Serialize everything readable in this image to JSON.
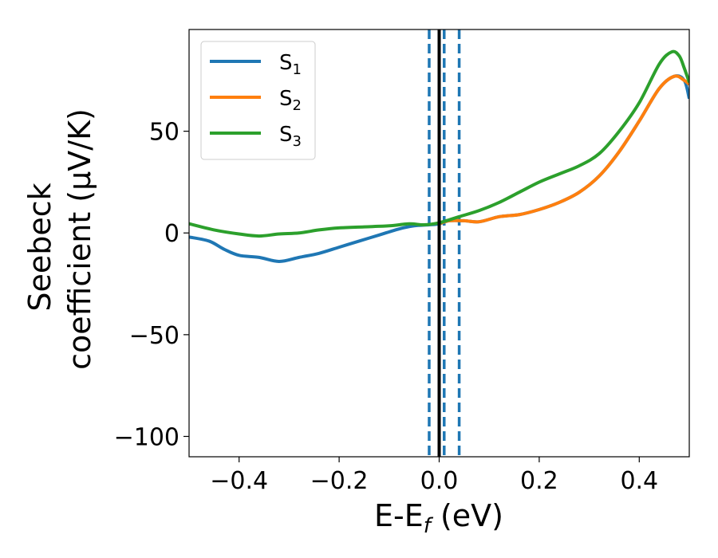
{
  "chart_data": {
    "type": "line",
    "xlabel_main": "E-E",
    "xlabel_sub": "f",
    "xlabel_unit": " (eV)",
    "ylabel_line1": "Seebeck",
    "ylabel_line2": "coefficient  (μV/K)",
    "xlim": [
      -0.5,
      0.5
    ],
    "ylim": [
      -110,
      100
    ],
    "xticks": [
      -0.4,
      -0.2,
      0.0,
      0.2,
      0.4
    ],
    "xtick_labels": [
      "−0.4",
      "−0.2",
      "0.0",
      "0.2",
      "0.4"
    ],
    "yticks": [
      -100,
      -50,
      0,
      50
    ],
    "ytick_labels": [
      "−100",
      "−50",
      "0",
      "50"
    ],
    "grid": false,
    "legend_position": "top-left",
    "series": [
      {
        "name": "S",
        "subscript": "1",
        "color": "#1f77b4",
        "x": [
          -0.5,
          -0.46,
          -0.43,
          -0.4,
          -0.36,
          -0.32,
          -0.28,
          -0.24,
          -0.2,
          -0.16,
          -0.12,
          -0.08,
          -0.05,
          -0.02,
          0.0,
          0.02,
          0.05,
          0.08,
          0.12,
          0.16,
          0.2,
          0.24,
          0.28,
          0.32,
          0.36,
          0.4,
          0.44,
          0.47,
          0.49,
          0.5
        ],
        "y": [
          -2,
          -4,
          -8,
          -11,
          -12,
          -14,
          -12,
          -10,
          -7,
          -4,
          -1,
          2,
          3.5,
          4,
          4.5,
          6,
          6,
          5.5,
          8,
          9,
          11.5,
          15,
          20,
          28,
          40,
          55,
          71,
          77,
          75,
          66
        ]
      },
      {
        "name": "S",
        "subscript": "2",
        "color": "#ff7f0e",
        "x": [
          0.0,
          0.02,
          0.05,
          0.08,
          0.12,
          0.16,
          0.2,
          0.24,
          0.28,
          0.32,
          0.36,
          0.4,
          0.44,
          0.47,
          0.49,
          0.5
        ],
        "y": [
          4.5,
          6,
          6,
          5.5,
          8,
          9,
          11.5,
          15,
          20,
          28,
          40,
          55,
          71,
          77,
          75,
          73
        ]
      },
      {
        "name": "S",
        "subscript": "3",
        "color": "#2ca02c",
        "x": [
          -0.5,
          -0.45,
          -0.4,
          -0.36,
          -0.32,
          -0.28,
          -0.24,
          -0.2,
          -0.15,
          -0.1,
          -0.06,
          -0.03,
          0.0,
          0.04,
          0.08,
          0.12,
          0.16,
          0.2,
          0.24,
          0.28,
          0.32,
          0.36,
          0.4,
          0.44,
          0.465,
          0.48,
          0.49,
          0.5
        ],
        "y": [
          4.5,
          1.5,
          -0.5,
          -1.5,
          -0.5,
          0,
          1.5,
          2.5,
          3,
          3.5,
          4.5,
          4,
          5,
          8,
          11,
          15,
          20,
          25,
          29,
          33,
          39,
          50,
          64,
          83,
          89,
          87,
          81,
          74
        ]
      }
    ],
    "vlines": [
      {
        "x": 0.0,
        "style": "solid",
        "color": "#000000"
      },
      {
        "x": -0.02,
        "style": "dashed",
        "color": "#1f77b4"
      },
      {
        "x": 0.01,
        "style": "dashed",
        "color": "#1f77b4"
      },
      {
        "x": 0.04,
        "style": "dashed",
        "color": "#1f77b4"
      }
    ]
  }
}
